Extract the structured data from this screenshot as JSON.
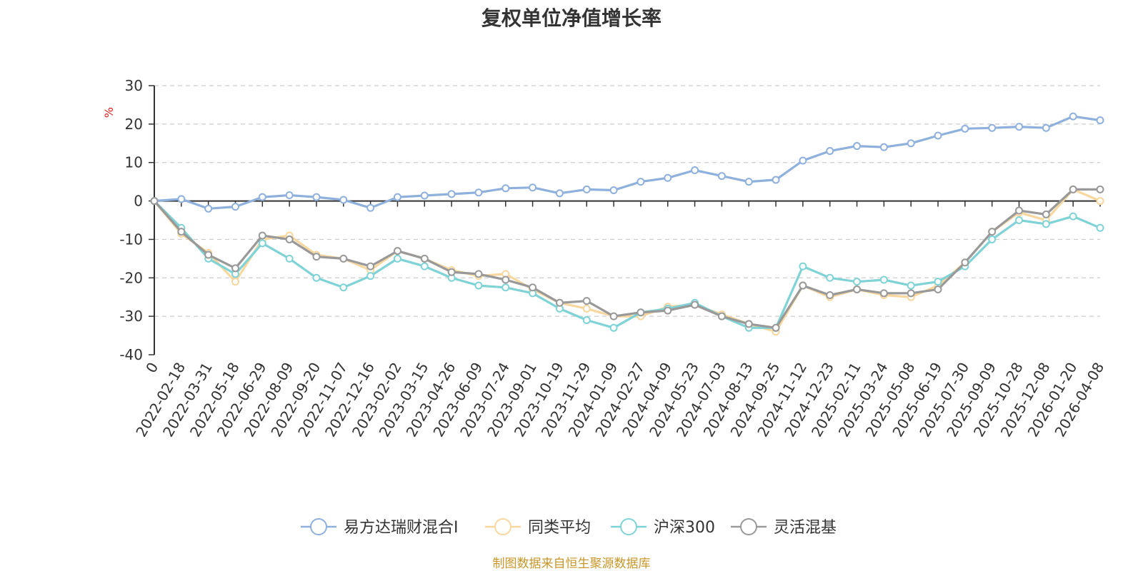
{
  "chart_data": {
    "type": "line",
    "title": "复权单位净值增长率",
    "ylabel": "%",
    "xlabel": "",
    "ylim": [
      -40,
      30
    ],
    "yticks": [
      30,
      20,
      10,
      0,
      -10,
      -20,
      -30,
      -40
    ],
    "grid": true,
    "legend_position": "bottom",
    "x_tick_labels": [
      "0",
      "2022-02-18",
      "2022-03-31",
      "2022-05-18",
      "2022-06-29",
      "2022-08-09",
      "2022-09-20",
      "2022-11-07",
      "2022-12-16",
      "2023-02-02",
      "2023-03-15",
      "2023-04-26",
      "2023-06-09",
      "2023-07-24",
      "2023-09-01",
      "2023-10-19",
      "2023-11-29",
      "2024-01-09",
      "2024-02-27",
      "2024-04-09",
      "2024-05-23",
      "2024-07-03",
      "2024-08-13",
      "2024-09-25",
      "2024-11-12",
      "2024-12-23",
      "2025-02-11",
      "2025-03-24",
      "2025-05-08",
      "2025-06-19",
      "2025-07-30",
      "2025-09-09",
      "2025-10-28",
      "2025-12-08",
      "2026-01-20",
      "2026-04-08"
    ],
    "series": [
      {
        "name": "易方达瑞财混合I",
        "color": "#8eb0dc",
        "values": [
          0,
          0.5,
          -2,
          -1.5,
          1,
          1.5,
          1,
          0.3,
          -1.8,
          1,
          1.4,
          1.8,
          2.2,
          3.3,
          3.5,
          2,
          3,
          2.8,
          5,
          6,
          8,
          6.5,
          5,
          5.5,
          10.5,
          13,
          14.3,
          14,
          15,
          17,
          18.8,
          19,
          19.3,
          19,
          22,
          21
        ]
      },
      {
        "name": "同类平均",
        "color": "#f7d79e",
        "values": [
          0,
          -8.5,
          -13.5,
          -21,
          -10,
          -9,
          -14,
          -15,
          -18,
          -13,
          -15,
          -18,
          -19.5,
          -19,
          -23,
          -26.5,
          -28,
          -30,
          -30,
          -27.5,
          -27,
          -29.5,
          -32,
          -34,
          -22,
          -25,
          -23,
          -24.5,
          -25,
          -22,
          -16,
          -8,
          -3,
          -5,
          3,
          0
        ]
      },
      {
        "name": "沪深300",
        "color": "#7fd3d6",
        "values": [
          0,
          -7,
          -15,
          -19,
          -11,
          -15,
          -20,
          -22.5,
          -19.5,
          -15,
          -17,
          -20,
          -22,
          -22.5,
          -24,
          -28,
          -31,
          -33,
          -29,
          -28,
          -26.5,
          -30,
          -33,
          -33,
          -17,
          -20,
          -21,
          -20.5,
          -22,
          -21,
          -17,
          -10,
          -5,
          -6,
          -4,
          -7
        ]
      },
      {
        "name": "灵活混基",
        "color": "#999999",
        "values": [
          0,
          -8,
          -14,
          -17.5,
          -9,
          -10,
          -14.5,
          -15,
          -17,
          -13,
          -15,
          -18.5,
          -19,
          -20.5,
          -22.5,
          -26.5,
          -26,
          -30,
          -29,
          -28.5,
          -27,
          -30,
          -32,
          -33,
          -22,
          -24.5,
          -23,
          -24,
          -24,
          -23,
          -16,
          -8,
          -2.5,
          -3.5,
          3,
          3
        ]
      }
    ]
  },
  "footer": {
    "source": "制图数据来自恒生聚源数据库"
  }
}
